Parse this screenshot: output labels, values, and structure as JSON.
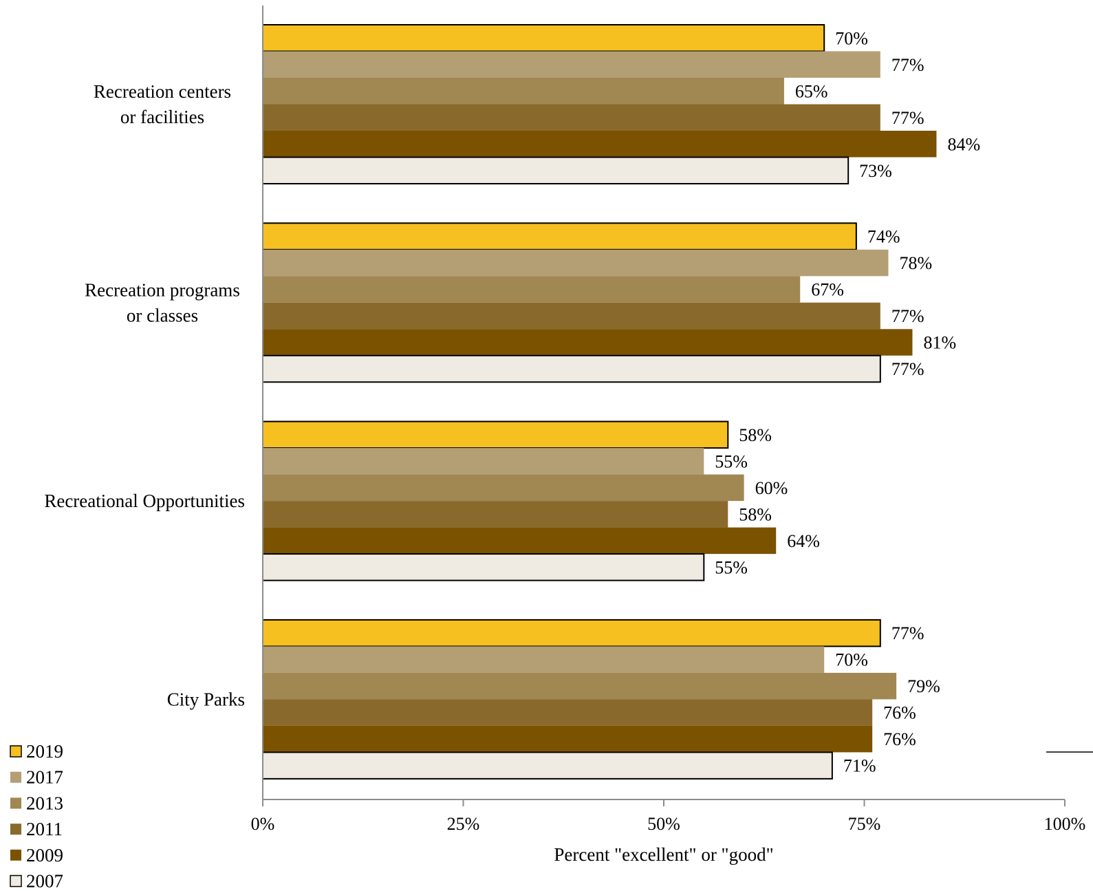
{
  "chart_data": {
    "type": "bar",
    "orientation": "horizontal",
    "categories": [
      [
        "Recreation centers",
        "or facilities"
      ],
      [
        "Recreation programs",
        "or classes"
      ],
      [
        "Recreational Opportunities"
      ],
      [
        "City Parks"
      ]
    ],
    "series": [
      {
        "name": "2019",
        "color": "#F5C020",
        "values": [
          70,
          74,
          58,
          77
        ]
      },
      {
        "name": "2017",
        "color": "#B49E74",
        "values": [
          77,
          78,
          55,
          70
        ]
      },
      {
        "name": "2013",
        "color": "#A18752",
        "values": [
          65,
          67,
          60,
          79
        ]
      },
      {
        "name": "2011",
        "color": "#8A6A2C",
        "values": [
          77,
          77,
          58,
          76
        ]
      },
      {
        "name": "2009",
        "color": "#7A5200",
        "values": [
          84,
          81,
          64,
          76
        ]
      },
      {
        "name": "2007",
        "color": "#EFEAE2",
        "values": [
          73,
          77,
          55,
          71
        ]
      }
    ],
    "value_suffix": "%",
    "xlabel": "Percent \"excellent\" or \"good\"",
    "xlim": [
      0,
      100
    ],
    "xticks": [
      0,
      25,
      50,
      75,
      100
    ],
    "xtick_labels": [
      "0%",
      "25%",
      "50%",
      "75%",
      "100%"
    ],
    "grid": false,
    "legend_position": "bottom-left"
  }
}
